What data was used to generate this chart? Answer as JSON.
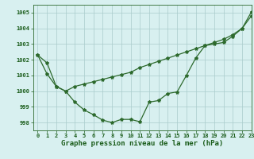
{
  "line1_x": [
    0,
    1,
    2,
    3,
    4,
    5,
    6,
    7,
    8,
    9,
    10,
    11,
    12,
    13,
    14,
    15,
    16,
    17,
    18,
    19,
    20,
    21,
    22,
    23
  ],
  "line1_y": [
    1002.3,
    1001.1,
    1000.3,
    1000.0,
    999.3,
    998.8,
    998.5,
    998.15,
    998.0,
    998.2,
    998.2,
    998.05,
    999.3,
    999.4,
    999.85,
    999.95,
    1001.0,
    1002.1,
    1002.9,
    1003.0,
    1003.1,
    1003.5,
    1004.0,
    1005.05
  ],
  "line2_x": [
    0,
    1,
    2,
    3,
    4,
    5,
    6,
    7,
    8,
    9,
    10,
    11,
    12,
    13,
    14,
    15,
    16,
    17,
    18,
    19,
    20,
    21,
    22,
    23
  ],
  "line2_y": [
    1002.3,
    1001.8,
    1000.3,
    1000.0,
    1000.3,
    1000.45,
    1000.6,
    1000.75,
    1000.9,
    1001.05,
    1001.2,
    1001.5,
    1001.7,
    1001.9,
    1002.1,
    1002.3,
    1002.5,
    1002.7,
    1002.9,
    1003.1,
    1003.3,
    1003.6,
    1004.0,
    1004.8
  ],
  "line_color": "#2d6a2d",
  "marker": "*",
  "markersize": 3,
  "linewidth": 0.9,
  "xlim": [
    -0.5,
    23
  ],
  "ylim": [
    997.5,
    1005.5
  ],
  "yticks": [
    998,
    999,
    1000,
    1001,
    1002,
    1003,
    1004,
    1005
  ],
  "xticks": [
    0,
    1,
    2,
    3,
    4,
    5,
    6,
    7,
    8,
    9,
    10,
    11,
    12,
    13,
    14,
    15,
    16,
    17,
    18,
    19,
    20,
    21,
    22,
    23
  ],
  "xlabel": "Graphe pression niveau de la mer (hPa)",
  "bg_color": "#d8f0f0",
  "grid_color": "#aacccc",
  "tick_label_color": "#1a5c1a",
  "xlabel_color": "#1a5c1a",
  "xlabel_fontsize": 6.5,
  "tick_fontsize": 5.0
}
